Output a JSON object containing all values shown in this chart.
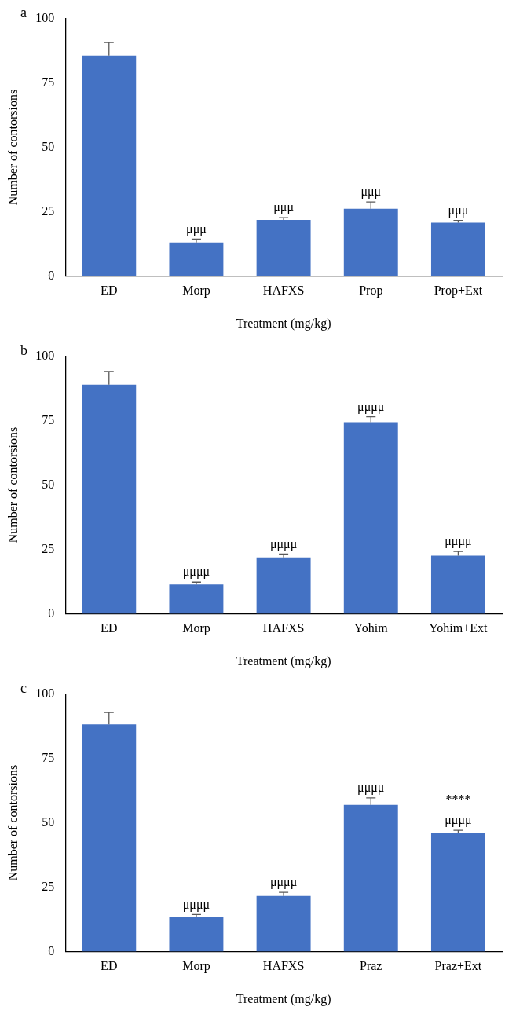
{
  "chart_data": [
    {
      "type": "bar",
      "title": "a",
      "xlabel": "Treatment (mg/kg)",
      "ylabel": "Number of contorsions",
      "categories": [
        "ED",
        "Morp",
        "HAFXS",
        "Prop",
        "Prop+Ext"
      ],
      "values": [
        85.6,
        13.1,
        21.8,
        26.2,
        20.8
      ],
      "errors": [
        5.1,
        1.3,
        0.9,
        2.6,
        0.8
      ],
      "color": "#4472c4",
      "ylim": [
        0,
        100
      ],
      "yticks": [
        0,
        25,
        50,
        75,
        100
      ],
      "grid": false,
      "legend": false,
      "annotations": [
        {
          "text": "μμμ",
          "x": "Morp",
          "y": 14.4
        },
        {
          "text": "μμμ",
          "x": "HAFXS",
          "y": 22.7
        },
        {
          "text": "μμμ",
          "x": "Prop",
          "y": 28.8
        },
        {
          "text": "μμμ",
          "x": "Prop+Ext",
          "y": 21.6
        }
      ]
    },
    {
      "type": "bar",
      "title": "b",
      "xlabel": "Treatment (mg/kg)",
      "ylabel": "Number of contorsions",
      "categories": [
        "ED",
        "Morp",
        "HAFXS",
        "Yohim",
        "Yohim+Ext"
      ],
      "values": [
        89.0,
        11.4,
        21.9,
        74.4,
        22.6
      ],
      "errors": [
        5.1,
        0.9,
        1.3,
        2.1,
        1.6
      ],
      "color": "#4472c4",
      "ylim": [
        0,
        100
      ],
      "yticks": [
        0,
        25,
        50,
        75,
        100
      ],
      "grid": false,
      "legend": false,
      "annotations": [
        {
          "text": "μμμμ",
          "x": "Morp",
          "y": 12.3
        },
        {
          "text": "μμμμ",
          "x": "HAFXS",
          "y": 23.2
        },
        {
          "text": "μμμμ",
          "x": "Yohim",
          "y": 76.5
        },
        {
          "text": "μμμμ",
          "x": "Yohim+Ext",
          "y": 24.2
        }
      ]
    },
    {
      "type": "bar",
      "title": "c",
      "xlabel": "Treatment (mg/kg)",
      "ylabel": "Number of contorsions",
      "categories": [
        "ED",
        "Morp",
        "HAFXS",
        "Praz",
        "Praz+Ext"
      ],
      "values": [
        88.2,
        13.4,
        21.6,
        57.0,
        45.9
      ],
      "errors": [
        4.6,
        1.0,
        1.4,
        2.7,
        1.2
      ],
      "color": "#4472c4",
      "ylim": [
        0,
        100
      ],
      "yticks": [
        0,
        25,
        50,
        75,
        100
      ],
      "grid": false,
      "legend": false,
      "annotations": [
        {
          "text": "μμμμ",
          "x": "Morp",
          "y": 14.4
        },
        {
          "text": "μμμμ",
          "x": "HAFXS",
          "y": 23.0
        },
        {
          "text": "μμμμ",
          "x": "Praz",
          "y": 59.7
        },
        {
          "text": "μμμμ\n****",
          "x": "Praz+Ext",
          "y": 47.1
        }
      ]
    }
  ]
}
